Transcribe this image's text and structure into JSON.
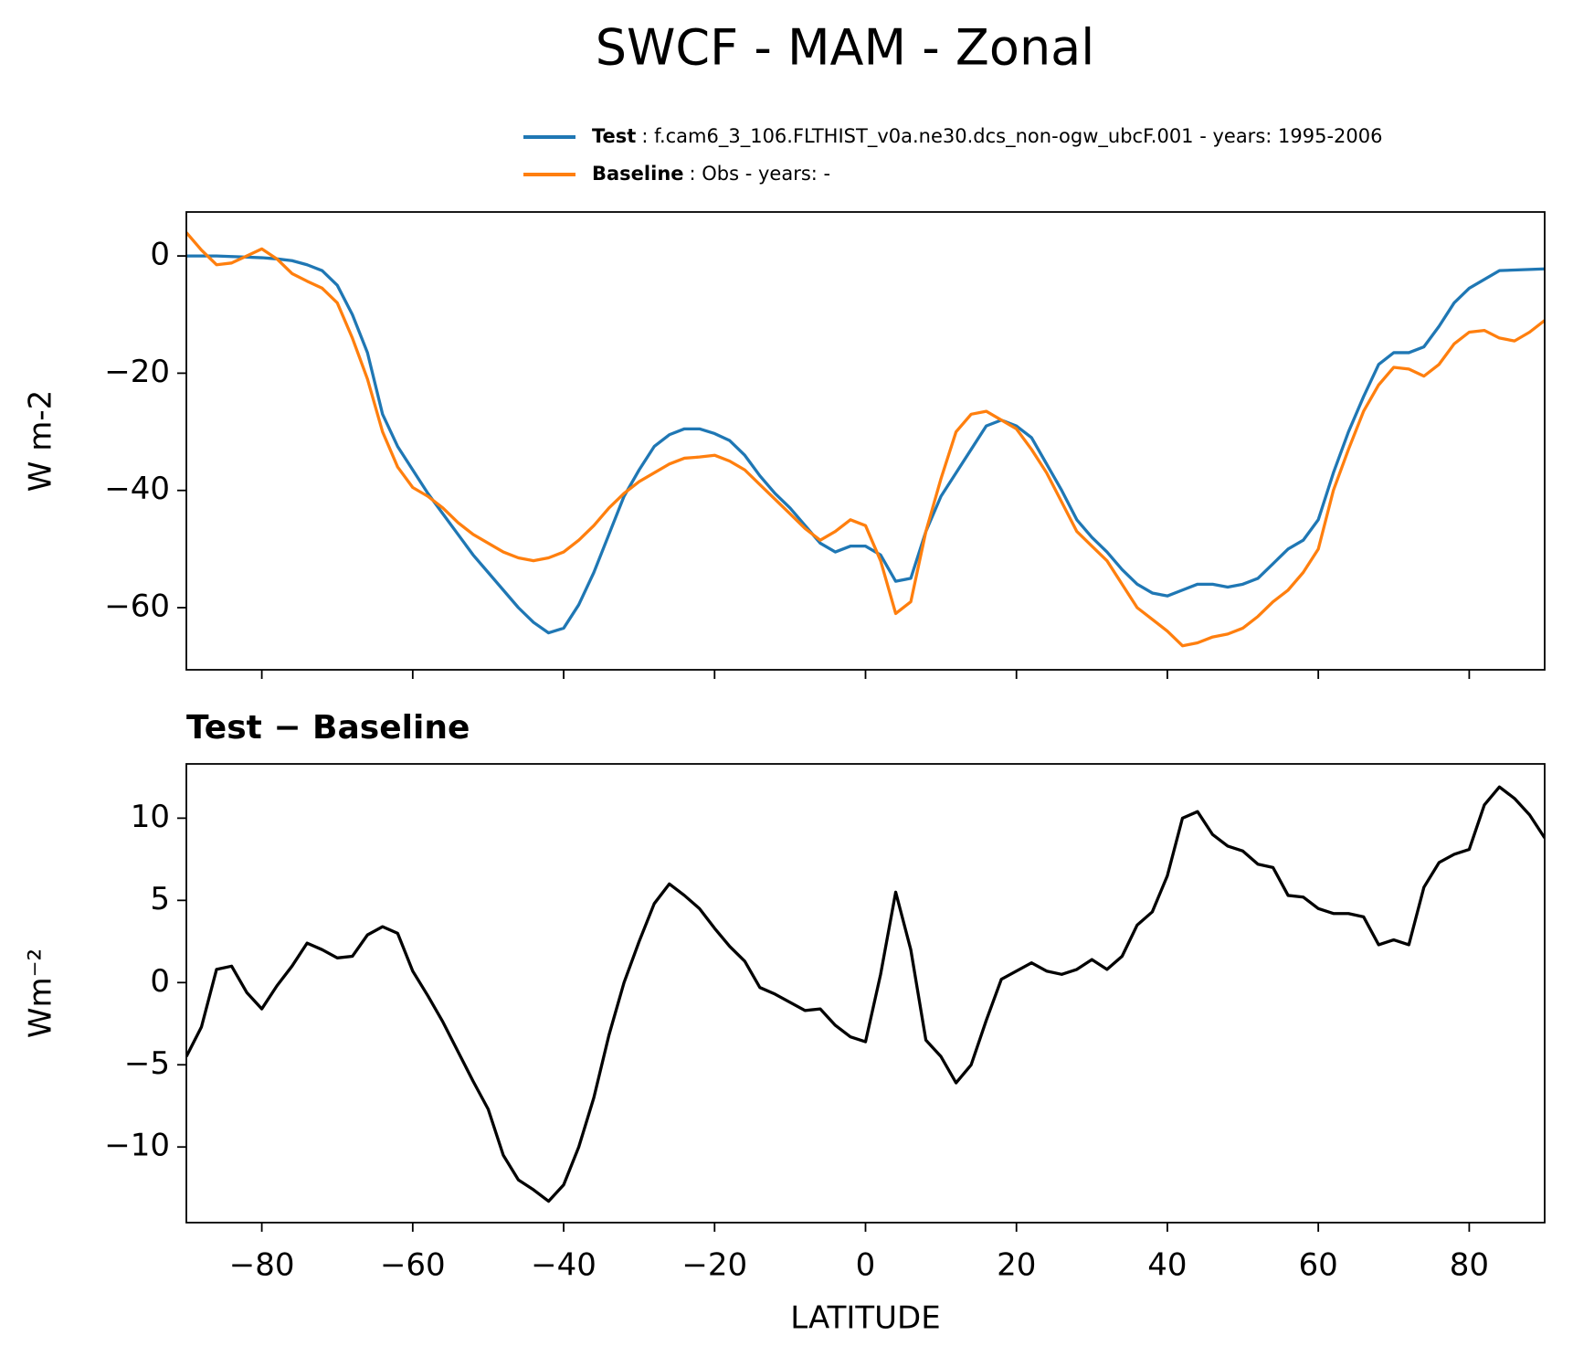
{
  "chart_data": [
    {
      "type": "line",
      "title": "SWCF - MAM - Zonal",
      "ylabel": "W m-2",
      "sharex": true,
      "x": [
        -90,
        -88,
        -86,
        -84,
        -82,
        -80,
        -78,
        -76,
        -74,
        -72,
        -70,
        -68,
        -66,
        -64,
        -62,
        -60,
        -58,
        -56,
        -54,
        -52,
        -50,
        -48,
        -46,
        -44,
        -42,
        -40,
        -38,
        -36,
        -34,
        -32,
        -30,
        -28,
        -26,
        -24,
        -22,
        -20,
        -18,
        -16,
        -14,
        -12,
        -10,
        -8,
        -6,
        -4,
        -2,
        0,
        2,
        4,
        6,
        8,
        10,
        12,
        14,
        16,
        18,
        20,
        22,
        24,
        26,
        28,
        30,
        32,
        34,
        36,
        38,
        40,
        42,
        44,
        46,
        48,
        50,
        52,
        54,
        56,
        58,
        60,
        62,
        64,
        66,
        68,
        70,
        72,
        74,
        76,
        78,
        80,
        82,
        84,
        86,
        88,
        90
      ],
      "series": [
        {
          "name": "Test",
          "label": ": f.cam6_3_106.FLTHIST_v0a.ne30.dcs_non-ogw_ubcF.001 - years: 1995-2006",
          "color": "#1f77b4",
          "values": [
            0,
            0,
            0,
            -0.1,
            -0.2,
            -0.3,
            -0.5,
            -0.8,
            -1.5,
            -2.5,
            -5,
            -10,
            -16.5,
            -27,
            -32.5,
            -36.5,
            -40.5,
            -44,
            -47.5,
            -51,
            -54,
            -57,
            -60,
            -62.5,
            -64.3,
            -63.5,
            -59.5,
            -54,
            -47.5,
            -41,
            -36.5,
            -32.5,
            -30.5,
            -29.5,
            -29.5,
            -30.3,
            -31.5,
            -34,
            -37.5,
            -40.5,
            -43,
            -46,
            -49,
            -50.5,
            -49.5,
            -49.5,
            -51,
            -55.5,
            -55,
            -47,
            -41,
            -37,
            -33,
            -29,
            -28,
            -29,
            -31,
            -35.5,
            -40,
            -45,
            -48,
            -50.5,
            -53.5,
            -56,
            -57.5,
            -58,
            -57,
            -56,
            -56,
            -56.5,
            -56,
            -55,
            -52.5,
            -50,
            -48.5,
            -45,
            -37,
            -30,
            -24,
            -18.5,
            -16.5,
            -16.5,
            -15.5,
            -12,
            -8,
            -5.5,
            -4,
            -2.5,
            -2.4,
            -2.3,
            -2.2
          ]
        },
        {
          "name": "Baseline",
          "label": ": Obs - years: -",
          "color": "#ff7f0e",
          "values": [
            4,
            1,
            -1.5,
            -1.2,
            0,
            1.2,
            -0.5,
            -3,
            -4.3,
            -5.5,
            -8,
            -14,
            -21,
            -30,
            -36,
            -39.5,
            -41,
            -43,
            -45.5,
            -47.5,
            -49,
            -50.5,
            -51.5,
            -52,
            -51.5,
            -50.5,
            -48.5,
            -46,
            -43,
            -40.5,
            -38.5,
            -37,
            -35.5,
            -34.5,
            -34.3,
            -34,
            -35,
            -36.5,
            -39,
            -41.5,
            -44,
            -46.5,
            -48.5,
            -47,
            -45,
            -46,
            -52,
            -61,
            -59,
            -47,
            -38,
            -30,
            -27,
            -26.5,
            -28,
            -29.5,
            -33,
            -37,
            -42,
            -47,
            -49.5,
            -52,
            -56,
            -60,
            -62,
            -64,
            -66.5,
            -66,
            -65,
            -64.5,
            -63.5,
            -61.5,
            -59,
            -57,
            -54,
            -50,
            -40,
            -33,
            -26.5,
            -22,
            -19,
            -19.3,
            -20.5,
            -18.5,
            -15,
            -13,
            -12.7,
            -14,
            -14.5,
            -13,
            -11
          ]
        }
      ],
      "xlim": [
        -90,
        90
      ],
      "xticks": [
        -80,
        -60,
        -40,
        -20,
        0,
        20,
        40,
        60,
        80
      ],
      "ylim": [
        -70.6,
        7.5
      ],
      "yticks": [
        {
          "value": -60,
          "label": "−60"
        },
        {
          "value": -40,
          "label": "−40"
        },
        {
          "value": -20,
          "label": "−20"
        },
        0
      ]
    },
    {
      "type": "line",
      "title": "Test − Baseline",
      "ylabel": "Wm⁻²",
      "xlabel": "LATITUDE",
      "x": [
        -90,
        -88,
        -86,
        -84,
        -82,
        -80,
        -78,
        -76,
        -74,
        -72,
        -70,
        -68,
        -66,
        -64,
        -62,
        -60,
        -58,
        -56,
        -54,
        -52,
        -50,
        -48,
        -46,
        -44,
        -42,
        -40,
        -38,
        -36,
        -34,
        -32,
        -30,
        -28,
        -26,
        -24,
        -22,
        -20,
        -18,
        -16,
        -14,
        -12,
        -10,
        -8,
        -6,
        -4,
        -2,
        0,
        2,
        4,
        6,
        8,
        10,
        12,
        14,
        16,
        18,
        20,
        22,
        24,
        26,
        28,
        30,
        32,
        34,
        36,
        38,
        40,
        42,
        44,
        46,
        48,
        50,
        52,
        54,
        56,
        58,
        60,
        62,
        64,
        66,
        68,
        70,
        72,
        74,
        76,
        78,
        80,
        82,
        84,
        86,
        88,
        90
      ],
      "series": [
        {
          "color": "#000000",
          "values": [
            -4.5,
            -2.7,
            0.8,
            1,
            -0.6,
            -1.6,
            -0.2,
            1,
            2.4,
            2,
            1.5,
            1.6,
            2.9,
            3.4,
            3,
            0.7,
            -0.8,
            -2.4,
            -4.2,
            -6,
            -7.7,
            -10.5,
            -12,
            -12.6,
            -13.3,
            -12.3,
            -10,
            -7,
            -3.2,
            0,
            2.5,
            4.8,
            6,
            5.3,
            4.5,
            3.3,
            2.2,
            1.3,
            -0.3,
            -0.7,
            -1.2,
            -1.7,
            -1.6,
            -2.6,
            -3.3,
            -3.6,
            0.5,
            5.5,
            2,
            -3.5,
            -4.5,
            -6.1,
            -5,
            -2.3,
            0.2,
            0.7,
            1.2,
            0.7,
            0.5,
            0.8,
            1.4,
            0.8,
            1.6,
            3.5,
            4.3,
            6.5,
            10,
            10.4,
            9,
            8.3,
            8,
            7.2,
            7,
            5.3,
            5.2,
            4.5,
            4.2,
            4.2,
            4,
            2.3,
            2.6,
            2.3,
            5.8,
            7.3,
            7.8,
            8.1,
            10.8,
            11.9,
            11.2,
            10.2,
            8.8
          ]
        }
      ],
      "xlim": [
        -90,
        90
      ],
      "xticks": [
        {
          "value": -80,
          "label": "−80"
        },
        {
          "value": -60,
          "label": "−60"
        },
        {
          "value": -40,
          "label": "−40"
        },
        {
          "value": -20,
          "label": "−20"
        },
        0,
        20,
        40,
        60,
        80
      ],
      "ylim": [
        -14.6,
        13.3
      ],
      "yticks": [
        {
          "value": -10,
          "label": "−10"
        },
        {
          "value": -5,
          "label": "−5"
        },
        0,
        5,
        10
      ]
    }
  ]
}
